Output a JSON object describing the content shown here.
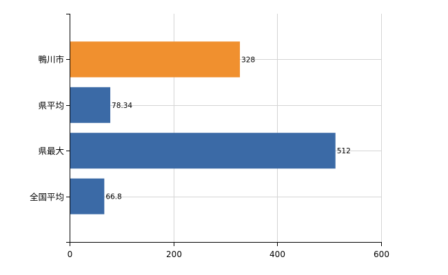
{
  "chart_data": {
    "type": "bar",
    "orientation": "horizontal",
    "categories": [
      "鴨川市",
      "県平均",
      "県最大",
      "全国平均"
    ],
    "values": [
      328,
      78.34,
      512,
      66.8
    ],
    "data_labels": [
      "328",
      "78.34",
      "512",
      "66.8"
    ],
    "bar_colors": [
      "#f0902f",
      "#3b6aa6",
      "#3b6aa6",
      "#3b6aa6"
    ],
    "xlim": [
      0,
      600
    ],
    "x_ticks": [
      0,
      200,
      400,
      600
    ],
    "x_tick_labels": [
      "0",
      "200",
      "400",
      "600"
    ],
    "grid": true,
    "title": "",
    "xlabel": "",
    "ylabel": ""
  }
}
